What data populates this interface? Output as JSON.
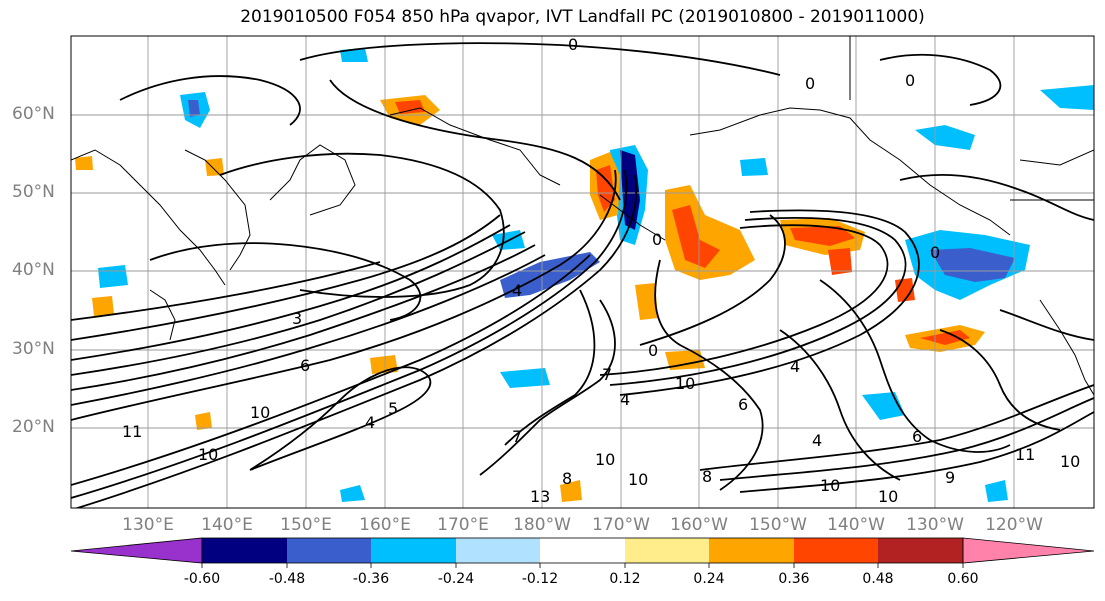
{
  "title": "2019010500 F054 850 hPa qvapor, IVT Landfall PC (2019010800 - 2019011000)",
  "lat_labels": [
    "60°N",
    "50°N",
    "40°N",
    "30°N",
    "20°N"
  ],
  "lon_labels": [
    "130°E",
    "140°E",
    "150°E",
    "160°E",
    "170°E",
    "180°W",
    "170°W",
    "160°W",
    "150°W",
    "140°W",
    "130°W",
    "120°W"
  ],
  "contour_labels": [
    "0",
    "0",
    "0",
    "0",
    "3",
    "4",
    "6",
    "7",
    "10",
    "10",
    "11",
    "10",
    "4",
    "4",
    "5",
    "0",
    "0",
    "6",
    "8",
    "7",
    "4",
    "4",
    "10",
    "10",
    "9",
    "10",
    "6",
    "11",
    "10",
    "10",
    "13",
    "8"
  ],
  "colorbar": {
    "ticks": [
      "-0.60",
      "-0.48",
      "-0.36",
      "-0.24",
      "-0.12",
      "0.12",
      "0.24",
      "0.36",
      "0.48",
      "0.60"
    ],
    "colors": [
      "#9932cc",
      "#000080",
      "#3a5fcd",
      "#00bfff",
      "#b0e2ff",
      "#ffffff",
      "#ffec8b",
      "#ffa500",
      "#ff4500",
      "#b22222",
      "#ff82ab"
    ],
    "extend": "both"
  },
  "shading_colors": {
    "neg_strong": "#000080",
    "neg_medium": "#3a5fcd",
    "neg": "#00bfff",
    "neg_weak": "#b0e2ff",
    "pos_weak": "#ffec8b",
    "pos": "#ffa500",
    "pos_medium": "#ff4500",
    "pos_strong": "#b22222"
  }
}
